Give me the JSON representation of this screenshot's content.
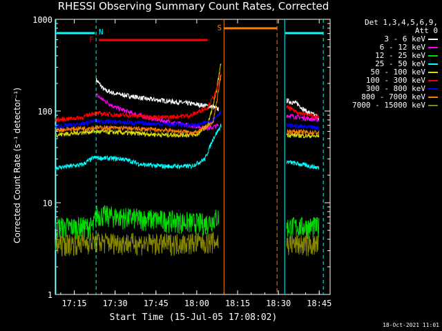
{
  "chart_data": {
    "type": "line",
    "title": "RHESSI Observing Summary Count Rates, Corrected",
    "xlabel": "Start Time (15-Jul-05 17:08:02)",
    "ylabel": "Corrected Count Rate (s⁻¹ detector⁻¹)",
    "yscale": "log",
    "ylim": [
      1,
      1000
    ],
    "xlim_minutes": [
      0,
      101
    ],
    "xticks": [
      "17:15",
      "17:30",
      "17:45",
      "18:00",
      "18:15",
      "18:30",
      "18:45"
    ],
    "yticks": [
      "1",
      "10",
      "100",
      "1000"
    ],
    "legend_header": [
      "Det 1,3,4,5,6,9,",
      "Att 0"
    ],
    "series": [
      {
        "name": "3 - 6 keV",
        "color": "#ffffff",
        "values_pre": [
          [
            15,
            220
          ],
          [
            18,
            170
          ],
          [
            22,
            155
          ],
          [
            28,
            145
          ],
          [
            34,
            135
          ],
          [
            40,
            130
          ],
          [
            45,
            125
          ],
          [
            50,
            120
          ],
          [
            55,
            115
          ],
          [
            58,
            110
          ],
          [
            60,
            105
          ]
        ],
        "values_post": [
          [
            85,
            130
          ],
          [
            89,
            120
          ],
          [
            92,
            100
          ],
          [
            97,
            85
          ]
        ]
      },
      {
        "name": "6 - 12 keV",
        "color": "#ff00ff",
        "values_pre": [
          [
            15,
            150
          ],
          [
            18,
            130
          ],
          [
            22,
            110
          ],
          [
            28,
            95
          ],
          [
            34,
            85
          ],
          [
            40,
            78
          ],
          [
            46,
            72
          ],
          [
            52,
            68
          ],
          [
            57,
            65
          ],
          [
            60,
            70
          ]
        ],
        "values_post": [
          [
            85,
            90
          ],
          [
            90,
            85
          ],
          [
            97,
            80
          ]
        ]
      },
      {
        "name": "12 - 25 keV",
        "color": "#00dd00",
        "values_pre": [
          [
            0,
            5.5
          ],
          [
            14,
            5.5
          ],
          [
            15,
            7.5
          ],
          [
            25,
            7
          ],
          [
            40,
            6.5
          ],
          [
            55,
            6
          ],
          [
            60,
            7
          ]
        ],
        "values_post": [
          [
            85,
            5.5
          ],
          [
            97,
            5.5
          ]
        ]
      },
      {
        "name": "25 - 50 keV",
        "color": "#00ffff",
        "values_pre": [
          [
            0,
            24
          ],
          [
            10,
            26
          ],
          [
            14,
            31
          ],
          [
            25,
            30
          ],
          [
            32,
            26
          ],
          [
            40,
            25
          ],
          [
            50,
            25
          ],
          [
            55,
            30
          ],
          [
            58,
            50
          ],
          [
            61,
            70
          ]
        ],
        "values_post": [
          [
            85,
            28
          ],
          [
            91,
            26
          ],
          [
            97,
            24
          ]
        ]
      },
      {
        "name": "50 - 100 keV",
        "color": "#dddd00",
        "values_pre": [
          [
            0,
            55
          ],
          [
            14,
            60
          ],
          [
            25,
            58
          ],
          [
            40,
            55
          ],
          [
            52,
            55
          ],
          [
            56,
            70
          ],
          [
            59,
            150
          ],
          [
            61,
            350
          ]
        ],
        "values_post": [
          [
            85,
            55
          ],
          [
            97,
            53
          ]
        ]
      },
      {
        "name": "100 - 300 keV",
        "color": "#ff0000",
        "values_pre": [
          [
            0,
            80
          ],
          [
            10,
            85
          ],
          [
            14,
            95
          ],
          [
            25,
            90
          ],
          [
            40,
            85
          ],
          [
            50,
            90
          ],
          [
            56,
            110
          ],
          [
            59,
            160
          ],
          [
            61,
            260
          ]
        ],
        "values_post": [
          [
            85,
            110
          ],
          [
            90,
            95
          ],
          [
            97,
            85
          ]
        ]
      },
      {
        "name": "300 - 800 keV",
        "color": "#0000ff",
        "values_pre": [
          [
            0,
            68
          ],
          [
            10,
            72
          ],
          [
            14,
            78
          ],
          [
            25,
            75
          ],
          [
            40,
            72
          ],
          [
            52,
            70
          ],
          [
            58,
            80
          ],
          [
            61,
            100
          ]
        ],
        "values_post": [
          [
            85,
            70
          ],
          [
            97,
            65
          ]
        ]
      },
      {
        "name": "800 - 7000 keV",
        "color": "#ff8000",
        "values_pre": [
          [
            0,
            62
          ],
          [
            14,
            66
          ],
          [
            25,
            65
          ],
          [
            40,
            62
          ],
          [
            52,
            58
          ],
          [
            58,
            75
          ],
          [
            61,
            250
          ]
        ],
        "values_post": [
          [
            85,
            60
          ],
          [
            97,
            58
          ]
        ]
      },
      {
        "name": "7000 - 15000 keV",
        "color": "#888800",
        "values_pre": [
          [
            0,
            3.5
          ],
          [
            14,
            3.8
          ],
          [
            25,
            3.7
          ],
          [
            40,
            3.6
          ],
          [
            60,
            3.8
          ]
        ],
        "values_post": [
          [
            85,
            3.6
          ],
          [
            97,
            3.5
          ]
        ]
      }
    ],
    "annotations": [
      {
        "label": "N",
        "color": "#00ffff"
      },
      {
        "label": "F",
        "color": "#ff0000"
      },
      {
        "label": "S",
        "color": "#ff8000"
      }
    ]
  },
  "footer_stamp": "18-Oct-2021 11:01"
}
